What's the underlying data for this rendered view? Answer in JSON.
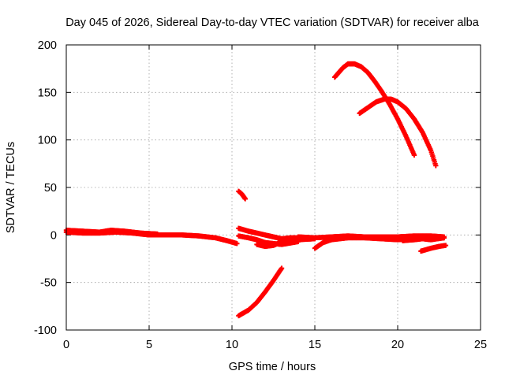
{
  "chart_data": {
    "type": "scatter",
    "title": "Day 045 of 2026, Sidereal Day-to-day VTEC variation (SDTVAR) for receiver alba",
    "xlabel": "GPS time / hours",
    "ylabel": "SDTVAR / TECUs",
    "xlim": [
      0,
      25
    ],
    "ylim": [
      -100,
      200
    ],
    "xticks": [
      "0",
      "5",
      "10",
      "15",
      "20",
      "25"
    ],
    "yticks": [
      "-100",
      "-50",
      "0",
      "50",
      "100",
      "150",
      "200"
    ],
    "grid": true,
    "legend": "none",
    "marker": "plus",
    "color": "#ff0000",
    "series": [
      {
        "x": [
          0.0,
          1.0,
          2.0,
          3.0,
          4.0,
          5.0,
          6.0,
          7.0,
          8.0,
          9.0,
          9.7,
          10.3
        ],
        "y": [
          3,
          2,
          2,
          3,
          2,
          0,
          0,
          0,
          -1,
          -3,
          -6,
          -9
        ]
      },
      {
        "x": [
          0.0,
          1.0,
          2.0,
          2.7,
          3.5,
          4.5,
          5.5
        ],
        "y": [
          5,
          4,
          3,
          5,
          4,
          2,
          1
        ]
      },
      {
        "x": [
          10.4,
          10.6,
          10.8
        ],
        "y": [
          46,
          43,
          38
        ]
      },
      {
        "x": [
          10.4,
          11.0,
          11.5,
          12.0,
          12.5,
          13.0
        ],
        "y": [
          -85,
          -79,
          -71,
          -60,
          -48,
          -35
        ]
      },
      {
        "x": [
          10.4,
          11.0,
          11.5,
          12.0,
          12.5,
          13.0,
          13.5,
          14.0
        ],
        "y": [
          7,
          4,
          2,
          0,
          -2,
          -4,
          -3,
          -3
        ]
      },
      {
        "x": [
          10.4,
          11.0,
          11.5,
          12.0,
          12.5,
          13.0,
          14.0
        ],
        "y": [
          -1,
          -3,
          -5,
          -8,
          -9,
          -10,
          -7
        ]
      },
      {
        "x": [
          11.5,
          12.0,
          12.5,
          13.0,
          14.0,
          15.0
        ],
        "y": [
          -10,
          -12,
          -11,
          -7,
          -5,
          -4
        ]
      },
      {
        "x": [
          15.0,
          15.5,
          16.0,
          17.0,
          18.0,
          19.0,
          20.0,
          21.0,
          22.0,
          22.8
        ],
        "y": [
          -14,
          -8,
          -5,
          -3,
          -3,
          -4,
          -5,
          -4,
          -4,
          -3
        ]
      },
      {
        "x": [
          14.0,
          15.0,
          16.0,
          17.0,
          18.0,
          19.0,
          20.0,
          21.0,
          22.0,
          22.8
        ],
        "y": [
          -2,
          -3,
          -2,
          -1,
          -2,
          -2,
          -2,
          -1,
          -1,
          -2
        ]
      },
      {
        "x": [
          20.3,
          21.0,
          21.5,
          22.0,
          22.8
        ],
        "y": [
          -6,
          -5,
          -4,
          -5,
          -3
        ]
      },
      {
        "x": [
          21.4,
          22.0,
          22.5,
          22.9
        ],
        "y": [
          -17,
          -14,
          -12,
          -11
        ]
      },
      {
        "x": [
          16.2,
          16.7,
          17.0,
          17.4,
          17.8,
          18.2,
          18.6,
          19.0,
          19.5,
          20.0,
          20.5,
          21.0
        ],
        "y": [
          166,
          176,
          180,
          180,
          177,
          171,
          162,
          152,
          138,
          122,
          104,
          84
        ]
      },
      {
        "x": [
          17.7,
          18.2,
          18.7,
          19.2,
          19.6,
          20.0,
          20.5,
          21.0,
          21.5,
          22.0,
          22.3
        ],
        "y": [
          128,
          134,
          140,
          143,
          143,
          140,
          133,
          122,
          108,
          89,
          73
        ]
      }
    ]
  }
}
